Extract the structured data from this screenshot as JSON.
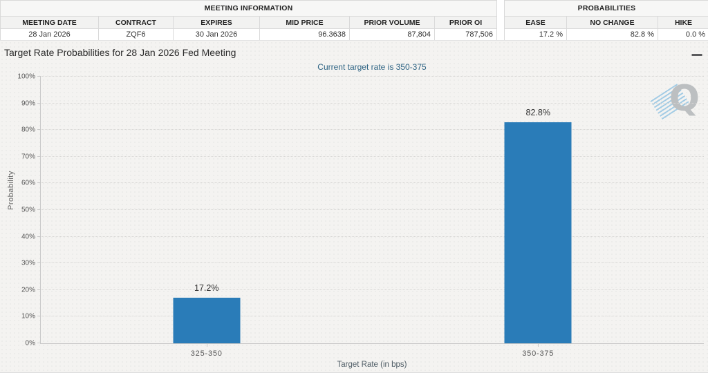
{
  "meeting_information": {
    "title": "MEETING INFORMATION",
    "columns": [
      "MEETING DATE",
      "CONTRACT",
      "EXPIRES",
      "MID PRICE",
      "PRIOR VOLUME",
      "PRIOR OI"
    ],
    "values": [
      "28 Jan 2026",
      "ZQF6",
      "30 Jan 2026",
      "96.3638",
      "87,804",
      "787,506"
    ]
  },
  "probabilities_summary": {
    "title": "PROBABILITIES",
    "columns": [
      "EASE",
      "NO CHANGE",
      "HIKE"
    ],
    "values": [
      "17.2 %",
      "82.8 %",
      "0.0 %"
    ]
  },
  "chart": {
    "title": "Target Rate Probabilities for 28 Jan 2026 Fed Meeting",
    "subtitle": "Current target rate is 350-375",
    "menu_icon": "hamburger-menu",
    "watermark_letter": "Q"
  },
  "chart_data": {
    "type": "bar",
    "title": "Target Rate Probabilities for 28 Jan 2026 Fed Meeting",
    "subtitle": "Current target rate is 350-375",
    "categories": [
      "325-350",
      "350-375"
    ],
    "values": [
      17.2,
      82.8
    ],
    "value_labels": [
      "17.2%",
      "82.8%"
    ],
    "xlabel": "Target Rate (in bps)",
    "ylabel": "Probability",
    "ylim": [
      0,
      100
    ],
    "ytick_step": 10,
    "ytick_suffix": "%",
    "grid": "horizontal-dotted",
    "legend": "none",
    "bar_color": "#2a7cb8"
  },
  "colors": {
    "bar": "#2a7cb8",
    "subtitle_text": "#2e6484",
    "chart_background": "#f4f3f1",
    "table_header_bg": "#f2f2f1",
    "border": "#d9d9d9"
  }
}
